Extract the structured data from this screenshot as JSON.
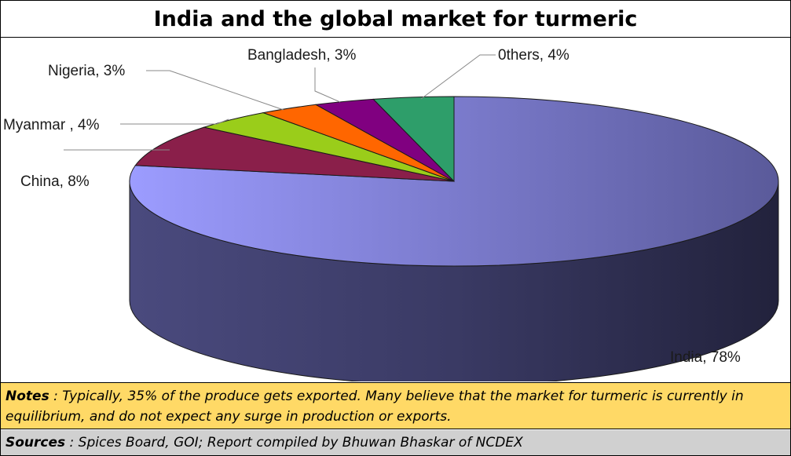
{
  "title": "India and the global market for turmeric",
  "notes": {
    "label": "Notes",
    "text": " : Typically, 35% of the produce gets exported.  Many believe that the market for turmeric is currently in equilibrium, and do not expect any surge in production or exports."
  },
  "sources": {
    "label": "Sources",
    "text": " : Spices Board, GOI; Report  compiled by Bhuwan Bhaskar of NCDEX"
  },
  "chart_data": {
    "type": "pie",
    "style": "3d",
    "slices": [
      {
        "label": "India, 78%",
        "value": 78,
        "color": "#8f8ff0",
        "dark": "#3a3a66"
      },
      {
        "label": "China, 8%",
        "value": 8,
        "color": "#8a1f4a",
        "dark": "#4a0f26"
      },
      {
        "label": "Myanmar , 4%",
        "value": 4,
        "color": "#9acd1a",
        "dark": "#4d6a0a"
      },
      {
        "label": "Nigeria, 3%",
        "value": 3,
        "color": "#ff6600",
        "dark": "#8a3300"
      },
      {
        "label": "Bangladesh, 3%",
        "value": 3,
        "color": "#800080",
        "dark": "#3c003c"
      },
      {
        "label": "0thers, 4%",
        "value": 4,
        "color": "#2e9e6a",
        "dark": "#0f4a30"
      }
    ]
  }
}
